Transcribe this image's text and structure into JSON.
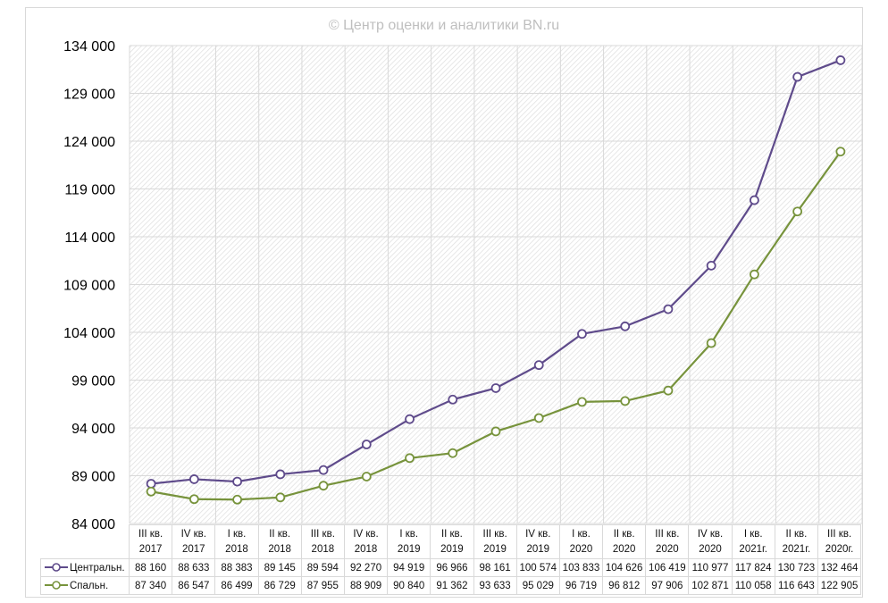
{
  "chart_data": {
    "type": "line",
    "title": "© Центр оценки и аналитики BN.ru",
    "categories": [
      [
        "III кв.",
        "2017"
      ],
      [
        "IV кв.",
        "2017"
      ],
      [
        "I кв.",
        "2018"
      ],
      [
        "II кв.",
        "2018"
      ],
      [
        "III кв.",
        "2018"
      ],
      [
        "IV кв.",
        "2018"
      ],
      [
        "I кв.",
        "2019"
      ],
      [
        "II кв.",
        "2019"
      ],
      [
        "III кв.",
        "2019"
      ],
      [
        "IV кв.",
        "2019"
      ],
      [
        "I кв.",
        "2020"
      ],
      [
        "II кв.",
        "2020"
      ],
      [
        "III кв.",
        "2020"
      ],
      [
        "IV кв.",
        "2020"
      ],
      [
        "I кв.",
        "2021г."
      ],
      [
        "II кв.",
        "2021г."
      ],
      [
        "III кв.",
        "2020г."
      ]
    ],
    "series": [
      {
        "name": "Центральн.",
        "color": "#5f4b8b",
        "values": [
          88160,
          88633,
          88383,
          89145,
          89594,
          92270,
          94919,
          96966,
          98161,
          100574,
          103833,
          104626,
          106419,
          110977,
          117824,
          130723,
          132464
        ],
        "labels": [
          "88 160",
          "88 633",
          "88 383",
          "89 145",
          "89 594",
          "92 270",
          "94 919",
          "96 966",
          "98 161",
          "100 574",
          "103 833",
          "104 626",
          "106 419",
          "110 977",
          "117 824",
          "130 723",
          "132 464"
        ]
      },
      {
        "name": "Спальн.",
        "color": "#77933c",
        "values": [
          87340,
          86547,
          86499,
          86729,
          87955,
          88909,
          90840,
          91362,
          93633,
          95029,
          96719,
          96812,
          97906,
          102871,
          110058,
          116643,
          122905
        ],
        "labels": [
          "87 340",
          "86 547",
          "86 499",
          "86 729",
          "87 955",
          "88 909",
          "90 840",
          "91 362",
          "93 633",
          "95 029",
          "96 719",
          "96 812",
          "97 906",
          "102 871",
          "110 058",
          "116 643",
          "122 905"
        ]
      }
    ],
    "ylim": [
      84000,
      134000
    ],
    "yticks": [
      84000,
      89000,
      94000,
      99000,
      104000,
      109000,
      114000,
      119000,
      124000,
      129000,
      134000
    ],
    "ytick_labels": [
      "84 000",
      "89 000",
      "94 000",
      "99 000",
      "104 000",
      "109 000",
      "114 000",
      "119 000",
      "124 000",
      "129 000",
      "134 000"
    ],
    "grid": true,
    "legend": "data-table"
  }
}
